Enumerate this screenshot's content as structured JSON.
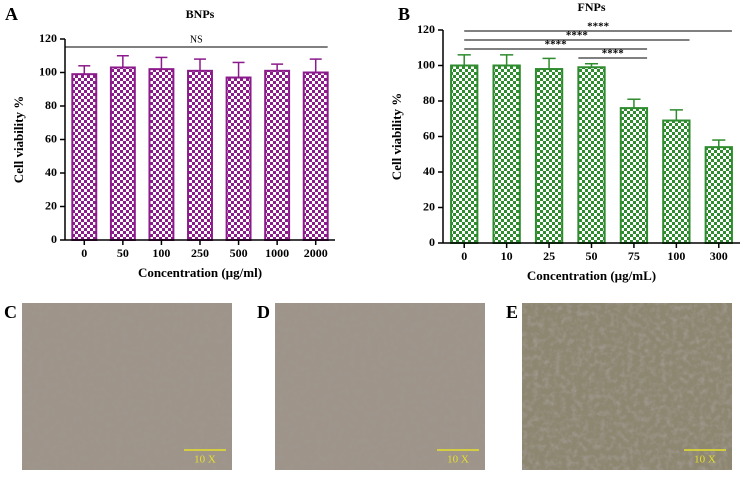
{
  "chart_data": [
    {
      "type": "bar",
      "panel": "A",
      "title": "BNPs",
      "x_label": "Concentration (µg/ml)",
      "y_label": "Cell viability %",
      "categories": [
        "0",
        "50",
        "100",
        "250",
        "500",
        "1000",
        "2000"
      ],
      "values": [
        99,
        103,
        102,
        101,
        97,
        101,
        100
      ],
      "errors": [
        5,
        7,
        7,
        7,
        9,
        4,
        8
      ],
      "color": "#8b1a8b",
      "ylim": [
        0,
        120
      ],
      "yticks": [
        0,
        20,
        40,
        60,
        80,
        100,
        120
      ],
      "annotations": [
        {
          "text": "NS",
          "from": "0",
          "to": "2000"
        }
      ]
    },
    {
      "type": "bar",
      "panel": "B",
      "title": "FNPs",
      "x_label": "Concentration (µg/mL)",
      "y_label": "Cell viability %",
      "categories": [
        "0",
        "10",
        "25",
        "50",
        "75",
        "100",
        "300"
      ],
      "values": [
        100,
        100,
        98,
        99,
        76,
        69,
        54
      ],
      "errors": [
        6,
        6,
        6,
        2,
        5,
        6,
        4
      ],
      "color": "#2e8b2e",
      "ylim": [
        0,
        120
      ],
      "yticks": [
        0,
        20,
        40,
        60,
        80,
        100,
        120
      ],
      "annotations": [
        {
          "text": "****",
          "from": "0",
          "to": "300"
        },
        {
          "text": "****",
          "from": "0",
          "to": "100"
        },
        {
          "text": "****",
          "from": "0",
          "to": "75"
        },
        {
          "text": "****",
          "from": "50",
          "to": "75"
        }
      ]
    }
  ],
  "images": [
    {
      "panel": "C",
      "scale_label": "10 X"
    },
    {
      "panel": "D",
      "scale_label": "10 X"
    },
    {
      "panel": "E",
      "scale_label": "10 X"
    }
  ]
}
